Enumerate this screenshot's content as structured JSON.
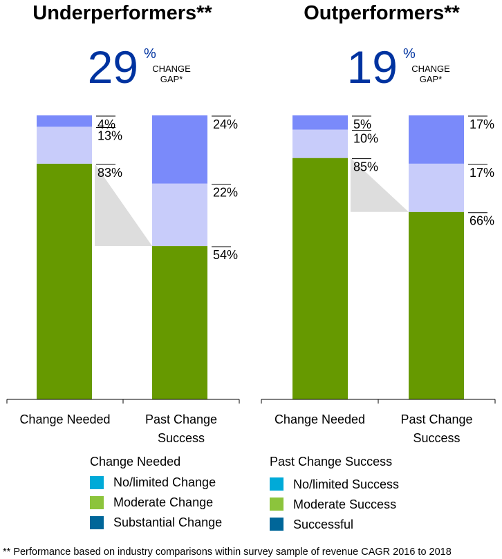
{
  "chart_data": [
    {
      "type": "bar",
      "stacked": true,
      "title": "Underperformers**",
      "gap_value": "29",
      "gap_unit": "%",
      "gap_label": [
        "CHANGE",
        "GAP*"
      ],
      "categories": [
        "Change Needed",
        "Past Change Success"
      ],
      "category_lines": [
        [
          "Change Needed"
        ],
        [
          "Past Change",
          "Success"
        ]
      ],
      "series": [
        {
          "values": [
            83,
            54
          ],
          "color": "#669900"
        },
        {
          "values": [
            13,
            22
          ],
          "color": "#c8ccfa"
        },
        {
          "values": [
            4,
            24
          ],
          "color": "#7a8afa"
        }
      ],
      "ylim": [
        0,
        100
      ]
    },
    {
      "type": "bar",
      "stacked": true,
      "title": "Outperformers**",
      "gap_value": "19",
      "gap_unit": "%",
      "gap_label": [
        "CHANGE",
        "GAP*"
      ],
      "categories": [
        "Change Needed",
        "Past Change Success"
      ],
      "category_lines": [
        [
          "Change Needed"
        ],
        [
          "Past Change",
          "Success"
        ]
      ],
      "series": [
        {
          "values": [
            85,
            66
          ],
          "color": "#669900"
        },
        {
          "values": [
            10,
            17
          ],
          "color": "#c8ccfa"
        },
        {
          "values": [
            5,
            17
          ],
          "color": "#7a8afa"
        }
      ],
      "ylim": [
        0,
        100
      ]
    }
  ],
  "legend": [
    {
      "title": "Change Needed",
      "items": [
        {
          "label": "No/limited Change",
          "color": "#00aad8"
        },
        {
          "label": "Moderate Change",
          "color": "#8cc43c"
        },
        {
          "label": "Substantial Change",
          "color": "#006699"
        }
      ]
    },
    {
      "title": "Past Change Success",
      "items": [
        {
          "label": "No/limited Success",
          "color": "#00aad8"
        },
        {
          "label": "Moderate Success",
          "color": "#8cc43c"
        },
        {
          "label": "Successful",
          "color": "#006699"
        }
      ]
    }
  ],
  "footnote": "** Performance based on industry comparisons within survey sample of revenue CAGR 2016 to 2018",
  "colors": {
    "gap_number": "#0033a0",
    "connector": "#dddddd"
  }
}
